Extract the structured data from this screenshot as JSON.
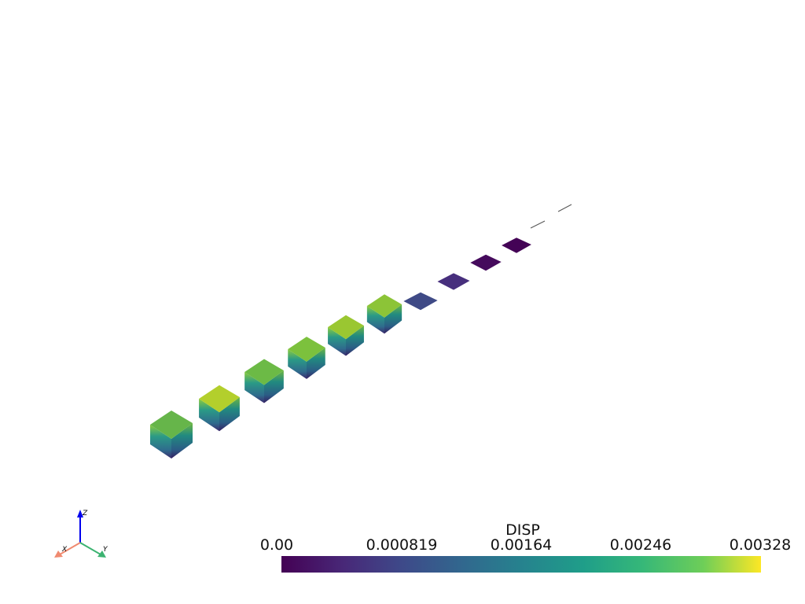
{
  "scalar_bar": {
    "title": "DISP",
    "tick_labels": [
      "0.00",
      "0.000819",
      "0.00164",
      "0.00246",
      "0.00328"
    ]
  },
  "orientation_axes": {
    "x": "X",
    "y": "Y",
    "z": "Z"
  }
}
